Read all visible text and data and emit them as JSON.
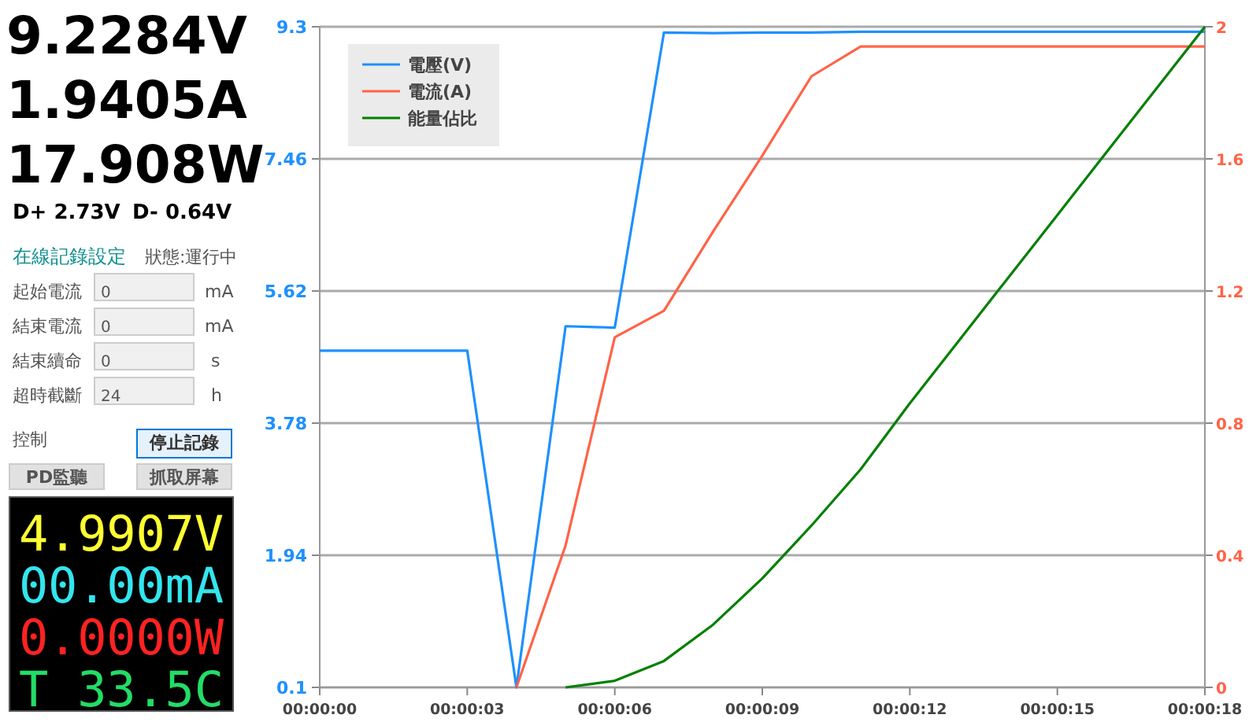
{
  "chart_data": [
    {
      "type": "other",
      "annotations": [
        "9.2284V",
        "1.9405A",
        "17.908W",
        "D+ 2.73V",
        "D- 0.64V",
        "在線記錄設定",
        "狀態:運行中",
        "起始電流",
        "0",
        "mA",
        "結束電流",
        "0",
        "mA",
        "結束續命",
        "0",
        "s",
        "超時截斷",
        "24",
        "h",
        "控制",
        "停止記錄",
        "PD監聽",
        "抓取屏幕",
        "4.9907V",
        "00.00mA",
        "0.0000W",
        "T 33.5C"
      ]
    },
    {
      "type": "line",
      "x": [
        0,
        1,
        2,
        3,
        4,
        5,
        6,
        7,
        8,
        9,
        10,
        11,
        12,
        13,
        14,
        15,
        16,
        17,
        18
      ],
      "xlim": [
        0,
        18
      ],
      "xticks": [
        {
          "value": 0,
          "label": "00:00:00"
        },
        {
          "value": 3,
          "label": "00:00:03"
        },
        {
          "value": 6,
          "label": "00:00:06"
        },
        {
          "value": 9,
          "label": "00:00:09"
        },
        {
          "value": 12,
          "label": "00:00:12"
        },
        {
          "value": 15,
          "label": "00:00:15"
        },
        {
          "value": 18,
          "label": "00:00:18"
        }
      ],
      "ylim": [
        0.1,
        9.3
      ],
      "yticks": [
        0.1,
        1.94,
        3.78,
        5.62,
        7.46,
        9.3
      ],
      "y2lim": [
        0,
        2
      ],
      "y2ticks": [
        0,
        0.4,
        0.8,
        1.2,
        1.6,
        2
      ],
      "grid": "y",
      "legend": "top left",
      "line_style": "solid",
      "marker": "none",
      "series": [
        {
          "name": "電壓(V)",
          "color": "#1e90ff",
          "values": [
            4.79,
            4.79,
            4.79,
            4.79,
            0.1,
            5.13,
            5.11,
            9.22,
            9.21,
            9.22,
            9.22,
            9.23,
            9.23,
            9.23,
            9.23,
            9.23,
            9.23,
            9.23,
            9.23
          ]
        },
        {
          "name": "電流(A)",
          "color": "#ff6347",
          "axis": "y2",
          "values": [
            null,
            null,
            null,
            null,
            0,
            0.43,
            1.06,
            1.14,
            1.38,
            1.61,
            1.85,
            1.94,
            1.94,
            1.94,
            1.94,
            1.94,
            1.94,
            1.94,
            1.94
          ]
        },
        {
          "name": "能量佔比",
          "color": "#008000",
          "axis": "y2",
          "values": [
            null,
            null,
            null,
            null,
            null,
            0,
            0.02,
            0.08,
            0.19,
            0.33,
            0.49,
            0.66,
            0.86,
            1.05,
            1.24,
            1.43,
            1.62,
            1.81,
            2.0
          ]
        }
      ]
    }
  ]
}
